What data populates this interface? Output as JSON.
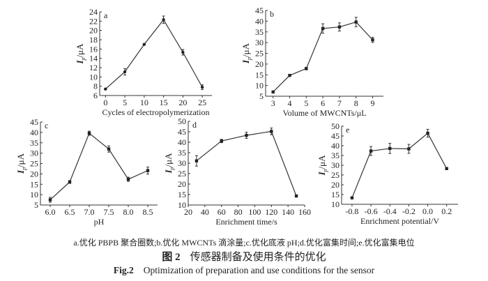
{
  "chart_data": [
    {
      "type": "line",
      "panel_label": "a",
      "xlabel": "Cycles of electropolymerization",
      "ylabel_main": "I",
      "ylabel_sub": "p",
      "ylabel_unit": "/μA",
      "x": [
        0,
        5,
        10,
        15,
        20,
        25
      ],
      "y": [
        7.4,
        11.1,
        17.0,
        22.3,
        15.3,
        7.8
      ],
      "yerr": [
        0.1,
        0.7,
        0.1,
        0.8,
        0.6,
        0.5
      ],
      "xticks": [
        0,
        5,
        10,
        15,
        20,
        25
      ],
      "xtick_labels": [
        "0",
        "5",
        "10",
        "15",
        "20",
        "25"
      ],
      "xlim": [
        -1.5,
        27.5
      ],
      "yticks": [
        6,
        8,
        10,
        12,
        14,
        16,
        18,
        20,
        22,
        24
      ],
      "ylim": [
        6,
        24
      ],
      "marker": "circle"
    },
    {
      "type": "line",
      "panel_label": "b",
      "xlabel": "Volume of MWCNTs/μL",
      "ylabel_main": "I",
      "ylabel_sub": "p",
      "ylabel_unit": "/μA",
      "x": [
        3,
        4,
        5,
        6,
        7,
        8,
        9
      ],
      "y": [
        7.0,
        14.7,
        17.9,
        36.6,
        37.3,
        39.6,
        31.3
      ],
      "yerr": [
        0.3,
        0.2,
        0.6,
        2.2,
        1.9,
        2.2,
        1.2
      ],
      "xticks": [
        3,
        4,
        5,
        6,
        7,
        8,
        9
      ],
      "xtick_labels": [
        "3",
        "4",
        "5",
        "6",
        "7",
        "8",
        "9"
      ],
      "xlim": [
        2.55,
        9.65
      ],
      "yticks": [
        5,
        10,
        15,
        20,
        25,
        30,
        35,
        40,
        45
      ],
      "ylim": [
        5,
        45
      ],
      "marker": "square"
    },
    {
      "type": "line",
      "panel_label": "c",
      "xlabel": "pH",
      "ylabel_main": "I",
      "ylabel_sub": "p",
      "ylabel_unit": "/μA",
      "x": [
        6.0,
        6.5,
        7.0,
        7.5,
        8.0,
        8.5
      ],
      "y": [
        7.5,
        16.1,
        39.6,
        32.0,
        17.4,
        21.6
      ],
      "yerr": [
        1.2,
        0.7,
        1.0,
        1.5,
        1.0,
        1.7
      ],
      "xticks": [
        6.0,
        6.5,
        7.0,
        7.5,
        8.0,
        8.5
      ],
      "xtick_labels": [
        "6.0",
        "6.5",
        "7.0",
        "7.5",
        "8.0",
        "8.5"
      ],
      "xlim": [
        5.75,
        8.75
      ],
      "yticks": [
        5,
        10,
        15,
        20,
        25,
        30,
        35,
        40,
        45
      ],
      "ylim": [
        5,
        45
      ],
      "marker": "square"
    },
    {
      "type": "line",
      "panel_label": "d",
      "xlabel": "Enrichment time/s",
      "ylabel_main": "I",
      "ylabel_sub": "p",
      "ylabel_unit": "/μA",
      "x": [
        30,
        60,
        90,
        120,
        150
      ],
      "y": [
        31.1,
        40.6,
        43.3,
        45.2,
        14.3
      ],
      "yerr": [
        2.5,
        0.8,
        1.5,
        1.6,
        0.3
      ],
      "xticks": [
        20,
        40,
        60,
        80,
        100,
        120,
        140,
        160
      ],
      "xtick_labels": [
        "20",
        "40",
        "60",
        "80",
        "100",
        "120",
        "140",
        "160"
      ],
      "xlim": [
        20,
        160
      ],
      "yticks": [
        10,
        15,
        20,
        25,
        30,
        35,
        40,
        45,
        50
      ],
      "ylim": [
        10,
        50
      ],
      "marker": "square"
    },
    {
      "type": "line",
      "panel_label": "e",
      "xlabel": "Enrichment potential/V",
      "ylabel_main": "I",
      "ylabel_sub": "p",
      "ylabel_unit": "/μA",
      "x": [
        -0.8,
        -0.6,
        -0.4,
        -0.2,
        0.0,
        0.2
      ],
      "y": [
        13.3,
        37.3,
        38.6,
        38.4,
        46.4,
        28.3
      ],
      "yerr": [
        0.3,
        2.3,
        2.6,
        2.3,
        2.0,
        0.4
      ],
      "xticks": [
        -0.8,
        -0.6,
        -0.4,
        -0.2,
        0.0,
        0.2
      ],
      "xtick_labels": [
        "-0.8",
        "-0.6",
        "-0.4",
        "-0.2",
        "0.0",
        "0.2"
      ],
      "xlim": [
        -0.91,
        0.32
      ],
      "yticks": [
        10,
        15,
        20,
        25,
        30,
        35,
        40,
        45,
        50
      ],
      "ylim": [
        10,
        50
      ],
      "marker": "square"
    }
  ],
  "caption": {
    "subtitle": "a.优化 PBPB 聚合圈数;b.优化 MWCNTs 滴涂量;c.优化底液 pH;d.优化富集时间;e.优化富集电位",
    "cn_label": "图 2",
    "cn_title": "传感器制备及使用条件的优化",
    "en_label": "Fig.2",
    "en_title": "Optimization of preparation and use conditions for the sensor"
  }
}
